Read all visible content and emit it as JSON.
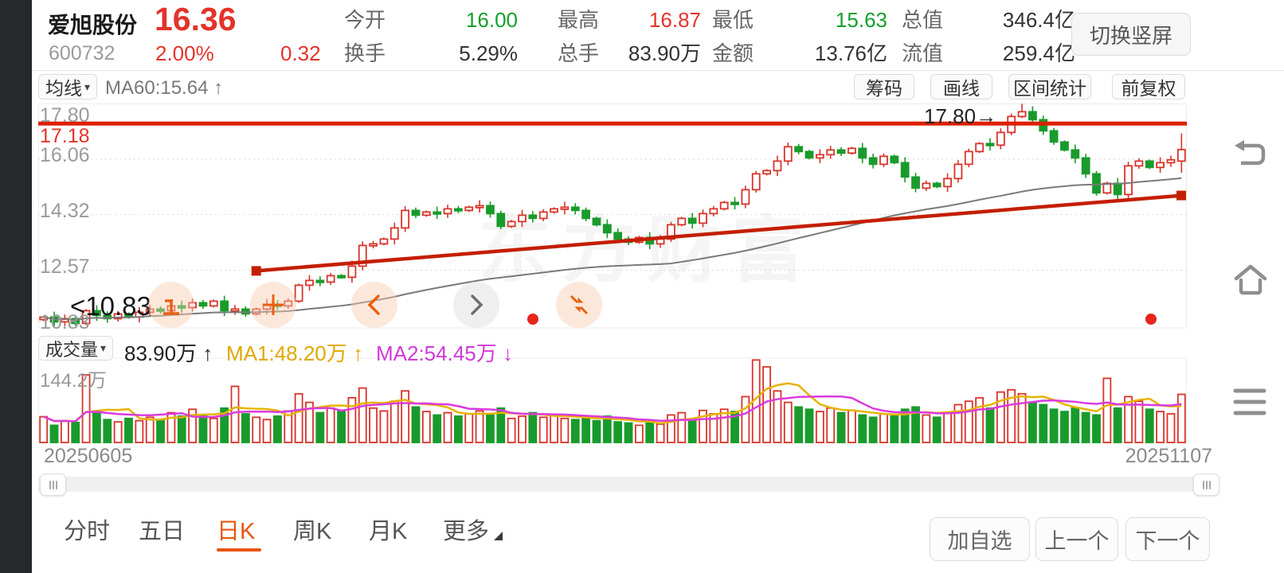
{
  "colors": {
    "up_red": "#d8342a",
    "down_green": "#199b2c",
    "line_red": "#dc2000",
    "ma60_gray": "#7a7a7a",
    "vol_ma1_yellow": "#e6b400",
    "vol_ma2_magenta": "#da3bdf",
    "accent_orange": "#e8550f"
  },
  "icons": {
    "dropdown": "▾"
  },
  "header": {
    "stock_name": "爱旭股份",
    "stock_code": "600732",
    "price": "16.36",
    "change_pct": "2.00%",
    "change_abs": "0.32",
    "stats": [
      {
        "label": "今开",
        "value": "16.00",
        "color": "green"
      },
      {
        "label": "换手",
        "value": "5.29%",
        "color": "dark"
      },
      {
        "label": "最高",
        "value": "16.87",
        "color": "red"
      },
      {
        "label": "总手",
        "value": "83.90万",
        "color": "dark"
      },
      {
        "label": "最低",
        "value": "15.63",
        "color": "green"
      },
      {
        "label": "金额",
        "value": "13.76亿",
        "color": "dark"
      },
      {
        "label": "总值",
        "value": "346.4亿",
        "color": "dark"
      },
      {
        "label": "流值",
        "value": "259.4亿",
        "color": "dark"
      }
    ],
    "rotate_label": "切换竖屏"
  },
  "toolbar": {
    "ma_selector": "均线",
    "ma60_label": "MA60:15.64 ↑",
    "buttons": [
      "筹码",
      "画线",
      "区间统计",
      "前复权"
    ]
  },
  "price_pane": {
    "axis_labels": [
      "17.80",
      "16.06",
      "14.32",
      "12.57",
      "10.83"
    ],
    "hline_price_label": "17.18",
    "high_marker": "17.80→",
    "low_marker": "<10.83",
    "watermark": "东方财富"
  },
  "volume_pane": {
    "selector": "成交量",
    "current": "83.90万 ↑",
    "ma1": "MA1:48.20万 ↑",
    "ma2": "MA2:54.45万 ↓",
    "axis_top": "144.2万",
    "date_start": "20250605",
    "date_end": "20251107"
  },
  "bottom_bar": {
    "tabs": [
      {
        "label": "分时",
        "active": false
      },
      {
        "label": "五日",
        "active": false
      },
      {
        "label": "日K",
        "active": true
      },
      {
        "label": "周K",
        "active": false
      },
      {
        "label": "月K",
        "active": false
      },
      {
        "label": "更多",
        "active": false
      }
    ],
    "actions": [
      "加自选",
      "上一个",
      "下一个"
    ]
  },
  "chart_data": {
    "type": "candlestick",
    "date_range": [
      "20250605",
      "20251107"
    ],
    "price_axis": [
      17.8,
      16.06,
      14.32,
      12.57,
      10.83
    ],
    "visible_high": 17.8,
    "visible_low": 10.83,
    "horizontal_line_price": 17.18,
    "trendline": {
      "from_index": 20,
      "from_price": 12.55,
      "to_price": 14.92
    },
    "today": {
      "open": 16.0,
      "high": 16.87,
      "low": 15.63,
      "close": 16.36
    },
    "ma60_last": 15.64,
    "vol_ma1": 48.2,
    "vol_ma2": 54.45,
    "vol_axis_top": 144.2,
    "closes": [
      11.1,
      10.95,
      11.05,
      10.9,
      11.3,
      11.15,
      11.05,
      11.2,
      11.1,
      11.25,
      11.35,
      11.3,
      11.45,
      11.4,
      11.55,
      11.45,
      11.6,
      11.3,
      11.35,
      11.2,
      11.35,
      11.5,
      11.45,
      11.6,
      12.1,
      12.25,
      12.2,
      12.4,
      12.35,
      12.7,
      13.35,
      13.4,
      13.55,
      13.9,
      14.45,
      14.3,
      14.4,
      14.35,
      14.5,
      14.45,
      14.55,
      14.6,
      14.35,
      13.95,
      14.1,
      14.3,
      14.2,
      14.4,
      14.5,
      14.55,
      14.45,
      14.2,
      14.0,
      13.75,
      13.55,
      13.45,
      13.6,
      13.4,
      13.55,
      14.0,
      14.2,
      14.05,
      14.35,
      14.5,
      14.7,
      14.65,
      15.1,
      15.6,
      15.7,
      16.0,
      16.45,
      16.3,
      16.1,
      16.2,
      16.35,
      16.25,
      16.4,
      16.1,
      15.9,
      16.15,
      15.95,
      15.5,
      15.15,
      15.3,
      15.2,
      15.45,
      15.9,
      16.3,
      16.55,
      16.5,
      16.9,
      17.4,
      17.55,
      17.3,
      16.95,
      16.6,
      16.35,
      16.1,
      15.6,
      15.0,
      15.3,
      14.95,
      15.85,
      16.0,
      15.8,
      15.95,
      16.04,
      16.36
    ],
    "volumes": [
      45,
      30,
      38,
      35,
      118,
      55,
      40,
      36,
      42,
      38,
      44,
      40,
      52,
      46,
      58,
      48,
      42,
      60,
      98,
      50,
      44,
      40,
      46,
      55,
      85,
      70,
      52,
      60,
      56,
      78,
      95,
      60,
      55,
      72,
      90,
      62,
      54,
      48,
      52,
      46,
      50,
      55,
      48,
      60,
      42,
      46,
      52,
      44,
      48,
      42,
      40,
      44,
      38,
      46,
      36,
      34,
      30,
      36,
      32,
      48,
      52,
      40,
      56,
      50,
      58,
      54,
      80,
      144,
      132,
      90,
      70,
      62,
      58,
      54,
      60,
      52,
      56,
      48,
      44,
      50,
      46,
      58,
      62,
      48,
      44,
      52,
      66,
      72,
      78,
      60,
      88,
      92,
      85,
      70,
      66,
      58,
      54,
      60,
      52,
      48,
      112,
      60,
      80,
      72,
      58,
      54,
      50,
      84
    ],
    "overrides": {
      "3": {
        "low": 10.83
      },
      "92": {
        "high": 17.8
      },
      "107": {
        "open": 16.0,
        "high": 16.87,
        "low": 15.63,
        "close": 16.36
      }
    }
  }
}
